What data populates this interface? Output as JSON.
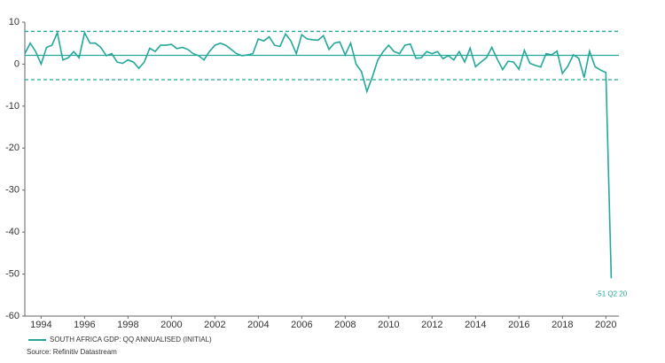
{
  "chart_data": {
    "type": "line",
    "x": [
      1993.25,
      1993.5,
      1993.75,
      1994,
      1994.25,
      1994.5,
      1994.75,
      1995,
      1995.25,
      1995.5,
      1995.75,
      1996,
      1996.25,
      1996.5,
      1996.75,
      1997,
      1997.25,
      1997.5,
      1997.75,
      1998,
      1998.25,
      1998.5,
      1998.75,
      1999,
      1999.25,
      1999.5,
      1999.75,
      2000,
      2000.25,
      2000.5,
      2000.75,
      2001,
      2001.25,
      2001.5,
      2001.75,
      2002,
      2002.25,
      2002.5,
      2002.75,
      2003,
      2003.25,
      2003.5,
      2003.75,
      2004,
      2004.25,
      2004.5,
      2004.75,
      2005,
      2005.25,
      2005.5,
      2005.75,
      2006,
      2006.25,
      2006.5,
      2006.75,
      2007,
      2007.25,
      2007.5,
      2007.75,
      2008,
      2008.25,
      2008.5,
      2008.75,
      2009,
      2009.25,
      2009.5,
      2009.75,
      2010,
      2010.25,
      2010.5,
      2010.75,
      2011,
      2011.25,
      2011.5,
      2011.75,
      2012,
      2012.25,
      2012.5,
      2012.75,
      2013,
      2013.25,
      2013.5,
      2013.75,
      2014,
      2014.25,
      2014.5,
      2014.75,
      2015,
      2015.25,
      2015.5,
      2015.75,
      2016,
      2016.25,
      2016.5,
      2016.75,
      2017,
      2017.25,
      2017.5,
      2017.75,
      2018,
      2018.25,
      2018.5,
      2018.75,
      2019,
      2019.25,
      2019.5,
      2019.75,
      2020,
      2020.25
    ],
    "series": [
      {
        "name": "SOUTH AFRICA GDP: QQ ANNUALISED (INITIAL)",
        "color": "#23a899",
        "values": [
          2.5,
          5,
          3,
          0,
          4,
          4.5,
          7.5,
          1,
          1.5,
          3,
          1.5,
          7.5,
          5,
          5,
          4,
          2,
          2.5,
          0.5,
          0.2,
          1,
          0.5,
          -1,
          0.5,
          3.8,
          3,
          4.5,
          4.5,
          4.7,
          3.7,
          4,
          3.5,
          2.5,
          2,
          1,
          3,
          4.5,
          5,
          4.5,
          3.5,
          2.5,
          2,
          2.2,
          2.5,
          6,
          5.5,
          6.5,
          4.5,
          4.2,
          7.2,
          5.5,
          2.5,
          7,
          6,
          5.8,
          5.7,
          6.8,
          3.5,
          5,
          5.3,
          2.2,
          5,
          0,
          -1.8,
          -6.5,
          -3,
          1,
          3,
          4.5,
          3,
          2.5,
          4.5,
          4.8,
          1.4,
          1.5,
          3,
          2.5,
          3,
          1.3,
          2,
          1,
          3,
          0.5,
          3.8,
          -0.6,
          0.5,
          1.5,
          4,
          1.2,
          -1.3,
          0.7,
          0.5,
          -1.2,
          3.3,
          0.2,
          -0.3,
          -0.7,
          2.5,
          2.2,
          3.1,
          -2.2,
          -0.5,
          2.2,
          1.4,
          -3.2,
          3.1,
          -0.6,
          -1.4,
          -2,
          -51
        ]
      }
    ],
    "reference_lines": [
      {
        "value": 7.8,
        "dashed": true
      },
      {
        "value": 2.1,
        "dashed": false
      },
      {
        "value": -3.7,
        "dashed": true
      }
    ],
    "annotations": [
      {
        "text": "-51 Q2 20"
      }
    ],
    "source": "Source: Refinitiv Datastream",
    "xlim": [
      1993.25,
      2020.6
    ],
    "xticks": [
      1994,
      1996,
      1998,
      2000,
      2002,
      2004,
      2006,
      2008,
      2010,
      2012,
      2014,
      2016,
      2018,
      2020
    ],
    "ylim": [
      -60,
      10
    ],
    "yticks": [
      10,
      0,
      -10,
      -20,
      -30,
      -40,
      -50,
      -60
    ],
    "legend": "bottom-left"
  }
}
